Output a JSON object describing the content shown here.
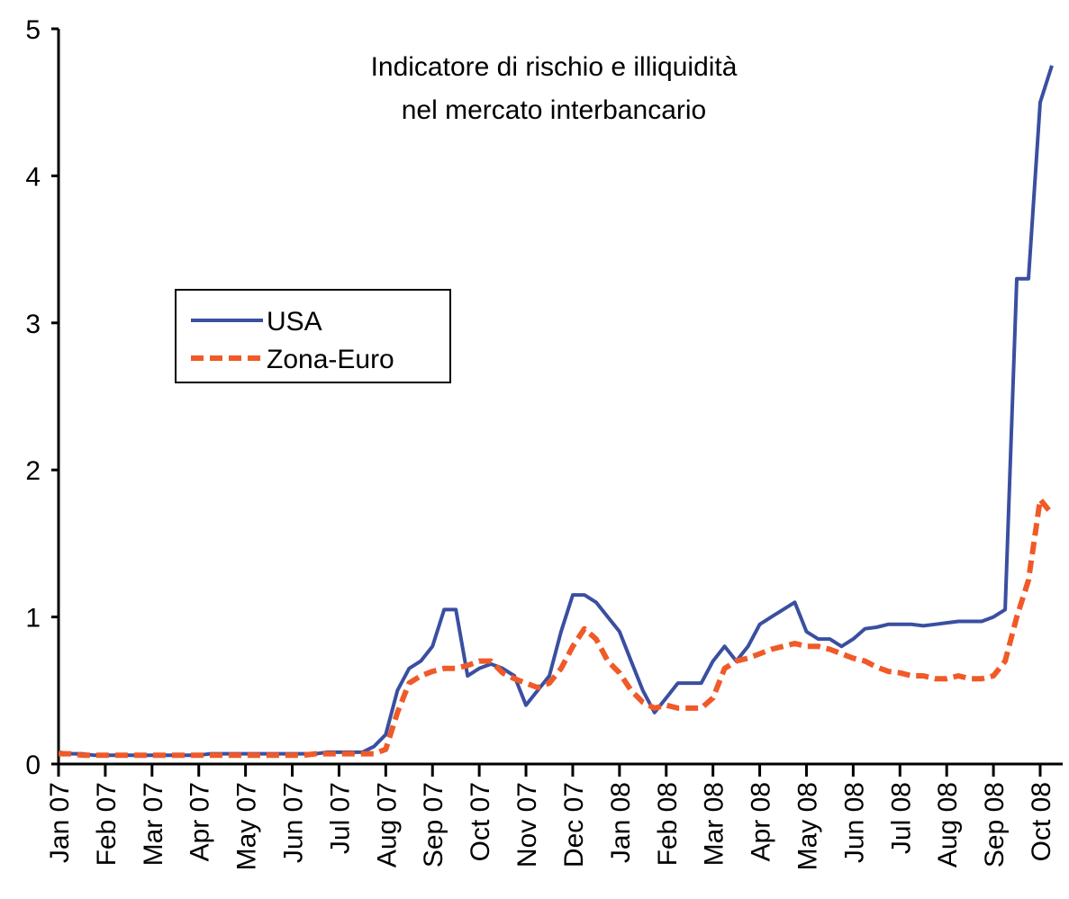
{
  "chart_data": {
    "type": "line",
    "title": "Indicatore di rischio e illiquidità",
    "subtitle": "nel mercato interbancario",
    "categories": [
      "Jan 07",
      null,
      null,
      null,
      "Feb 07",
      null,
      null,
      null,
      "Mar 07",
      null,
      null,
      null,
      "Apr 07",
      null,
      null,
      null,
      "May 07",
      null,
      null,
      null,
      "Jun 07",
      null,
      null,
      null,
      "Jul 07",
      null,
      null,
      null,
      "Aug 07",
      null,
      null,
      null,
      "Sep 07",
      null,
      null,
      null,
      "Oct 07",
      null,
      null,
      null,
      "Nov 07",
      null,
      null,
      null,
      "Dec 07",
      null,
      null,
      null,
      "Jan 08",
      null,
      null,
      null,
      "Feb 08",
      null,
      null,
      null,
      "Mar 08",
      null,
      null,
      null,
      "Apr 08",
      null,
      null,
      null,
      "May 08",
      null,
      null,
      null,
      "Jun 08",
      null,
      null,
      null,
      "Jul 08",
      null,
      null,
      null,
      "Aug 08",
      null,
      null,
      null,
      "Sep 08",
      null,
      null,
      null,
      "Oct 08",
      null
    ],
    "series": [
      {
        "name": "USA",
        "color": "#3a4fa0",
        "dash": false,
        "values": [
          0.08,
          0.07,
          0.07,
          0.06,
          0.06,
          0.06,
          0.06,
          0.06,
          0.06,
          0.06,
          0.06,
          0.06,
          0.06,
          0.07,
          0.07,
          0.07,
          0.07,
          0.07,
          0.07,
          0.07,
          0.07,
          0.07,
          0.07,
          0.08,
          0.08,
          0.08,
          0.08,
          0.12,
          0.2,
          0.5,
          0.65,
          0.7,
          0.8,
          1.05,
          1.05,
          0.6,
          0.65,
          0.68,
          0.65,
          0.6,
          0.4,
          0.5,
          0.6,
          0.9,
          1.15,
          1.15,
          1.1,
          1.0,
          0.9,
          0.7,
          0.5,
          0.35,
          0.45,
          0.55,
          0.55,
          0.55,
          0.7,
          0.8,
          0.7,
          0.8,
          0.95,
          1.0,
          1.05,
          1.1,
          0.9,
          0.85,
          0.85,
          0.8,
          0.85,
          0.92,
          0.93,
          0.95,
          0.95,
          0.95,
          0.94,
          0.95,
          0.96,
          0.97,
          0.97,
          0.97,
          1.0,
          1.05,
          3.3,
          3.3,
          4.5,
          4.75
        ]
      },
      {
        "name": "Zona-Euro",
        "color": "#f05a28",
        "dash": true,
        "values": [
          0.07,
          0.07,
          0.06,
          0.06,
          0.06,
          0.06,
          0.06,
          0.06,
          0.06,
          0.06,
          0.06,
          0.06,
          0.06,
          0.06,
          0.06,
          0.06,
          0.06,
          0.06,
          0.06,
          0.06,
          0.06,
          0.06,
          0.07,
          0.07,
          0.07,
          0.07,
          0.07,
          0.07,
          0.1,
          0.35,
          0.55,
          0.6,
          0.63,
          0.65,
          0.65,
          0.67,
          0.7,
          0.7,
          0.62,
          0.58,
          0.55,
          0.52,
          0.55,
          0.65,
          0.8,
          0.92,
          0.85,
          0.7,
          0.62,
          0.5,
          0.42,
          0.38,
          0.4,
          0.38,
          0.38,
          0.38,
          0.45,
          0.65,
          0.7,
          0.72,
          0.75,
          0.78,
          0.8,
          0.82,
          0.8,
          0.8,
          0.78,
          0.75,
          0.72,
          0.7,
          0.66,
          0.63,
          0.62,
          0.6,
          0.6,
          0.58,
          0.58,
          0.6,
          0.58,
          0.58,
          0.6,
          0.7,
          1.0,
          1.25,
          1.8,
          1.7
        ]
      }
    ],
    "ylim": [
      0,
      5
    ],
    "yticks": [
      0,
      1,
      2,
      3,
      4,
      5
    ]
  }
}
